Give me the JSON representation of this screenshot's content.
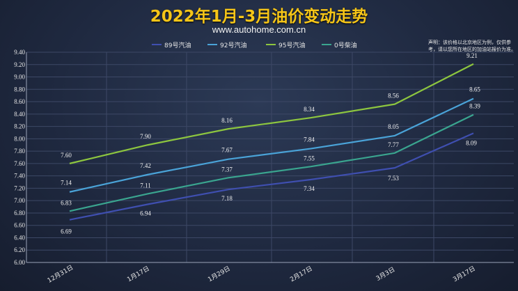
{
  "header": {
    "title": "2022年1月-3月油价变动走势",
    "subtitle": "www.autohome.com.cn"
  },
  "note": "声明：该价格以北京地区为例，仅供参考，请以您所在地区的加油站报价为准。",
  "chart_data": {
    "type": "line",
    "categories": [
      "12月31日",
      "1月17日",
      "1月29日",
      "2月17日",
      "3月3日",
      "3月17日"
    ],
    "series": [
      {
        "name": "89号汽油",
        "color": "#3f4fb0",
        "values": [
          6.69,
          6.94,
          7.18,
          7.34,
          7.53,
          8.09
        ]
      },
      {
        "name": "92号汽油",
        "color": "#4aa3d8",
        "values": [
          7.14,
          7.42,
          7.67,
          7.84,
          8.05,
          8.65
        ]
      },
      {
        "name": "95号汽油",
        "color": "#8dc63f",
        "values": [
          7.6,
          7.9,
          8.16,
          8.34,
          8.56,
          9.21
        ]
      },
      {
        "name": "0号柴油",
        "color": "#3aa58f",
        "values": [
          6.83,
          7.11,
          7.37,
          7.55,
          7.77,
          8.39
        ]
      }
    ],
    "ylim": [
      6.0,
      9.4
    ],
    "ytick_step": 0.2,
    "grid": true,
    "legend_position": "top"
  }
}
